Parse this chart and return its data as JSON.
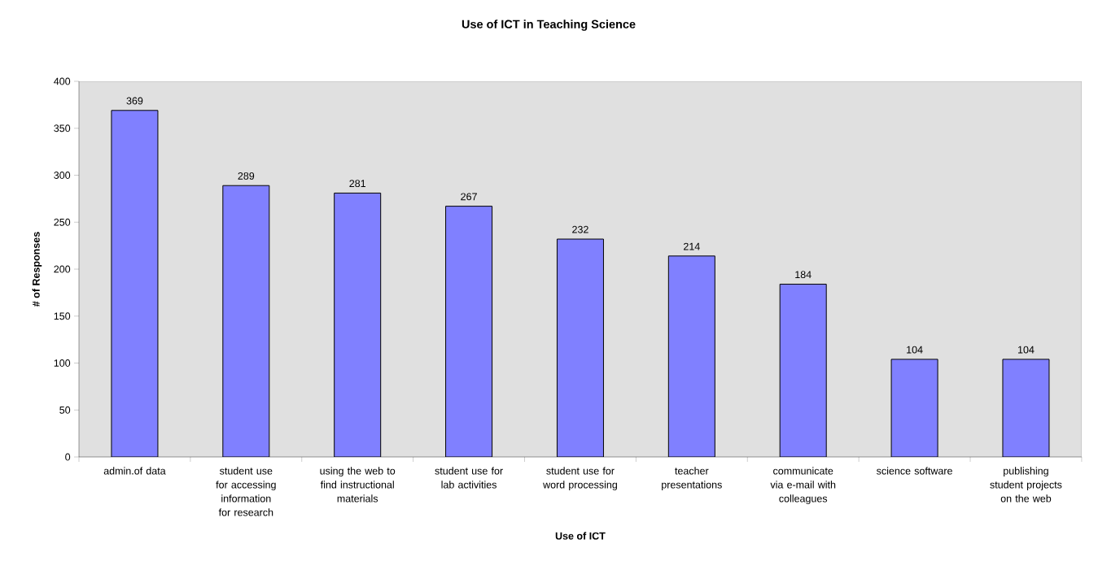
{
  "chart_data": {
    "type": "bar",
    "title": "Use of ICT in Teaching Science",
    "xlabel": "Use of ICT",
    "ylabel": "# of Responses",
    "categories": [
      "admin.of data",
      "student use for accessing information for research",
      "using the web to find instructional materials",
      "student use for lab activities",
      "student use for word processing",
      "teacher presentations",
      "communicate via e-mail with colleagues",
      "science software",
      "publishing student projects on the web"
    ],
    "values": [
      369,
      289,
      281,
      267,
      232,
      214,
      184,
      104,
      104
    ],
    "color": "#8080ff",
    "ylim": [
      0,
      400
    ],
    "yticks": [
      0,
      50,
      100,
      150,
      200,
      250,
      300,
      350,
      400
    ],
    "data_labels": true,
    "grid": false
  }
}
